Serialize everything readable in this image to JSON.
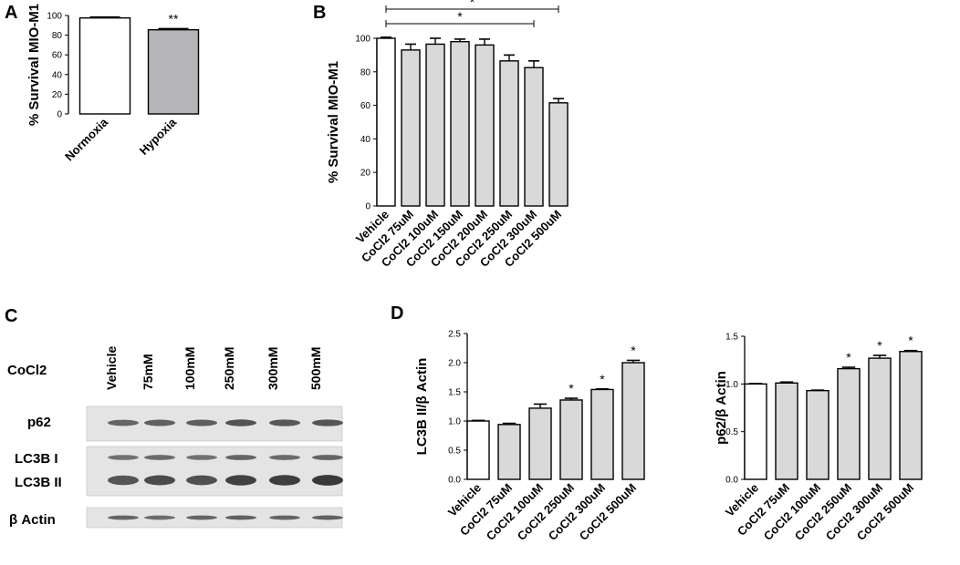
{
  "panels": {
    "a": "A",
    "b": "B",
    "c": "C",
    "d": "D"
  },
  "colors": {
    "white_bar": "#ffffff",
    "gray_bar_a": "#b5b5b8",
    "gray_bar": "#d9d9d9",
    "axis": "#000000",
    "blot_bg": "#e4e4e4",
    "band": "#2a2a2a"
  },
  "chart_data": [
    {
      "id": "A",
      "type": "bar",
      "categories": [
        "Normoxia",
        "Hypoxia"
      ],
      "values": [
        97.5,
        85.5
      ],
      "errors": [
        1.0,
        1.2
      ],
      "fills": [
        "white",
        "gray_a"
      ],
      "sig": [
        "",
        "**"
      ],
      "ylabel": "% Survival MIO-M1",
      "ylim": [
        0,
        100
      ],
      "yticks": [
        0,
        20,
        40,
        60,
        80,
        100
      ]
    },
    {
      "id": "B",
      "type": "bar",
      "categories": [
        "Vehicle",
        "CoCl2 75uM",
        "CoCl2 100uM",
        "CoCl2 150uM",
        "CoCl2 200uM",
        "CoCl2 250uM",
        "CoCl2 300uM",
        "CoCl2 500uM"
      ],
      "values": [
        100,
        93,
        96.5,
        98,
        96,
        86.5,
        82.5,
        61.5
      ],
      "errors": [
        0.6,
        3.5,
        3.5,
        1.5,
        3.5,
        3.5,
        4.0,
        2.5
      ],
      "fills": [
        "white",
        "gray",
        "gray",
        "gray",
        "gray",
        "gray",
        "gray",
        "gray"
      ],
      "sig": [
        "",
        "",
        "",
        "",
        "",
        "",
        "",
        ""
      ],
      "brackets": [
        {
          "from": 0,
          "to": 7,
          "label": "*"
        },
        {
          "from": 0,
          "to": 6,
          "label": "*"
        }
      ],
      "ylabel": "% Survival MIO-M1",
      "ylim": [
        0,
        100
      ],
      "yticks": [
        0,
        20,
        40,
        60,
        80,
        100
      ]
    },
    {
      "id": "D1",
      "type": "bar",
      "categories": [
        "Vehicle",
        "CoCl2 75uM",
        "CoCl2 100uM",
        "CoCl2 250uM",
        "CoCl2 300uM",
        "CoCl2 500uM"
      ],
      "values": [
        1.0,
        0.94,
        1.22,
        1.36,
        1.54,
        2.0
      ],
      "errors": [
        0.01,
        0.02,
        0.07,
        0.03,
        0.01,
        0.04
      ],
      "fills": [
        "white",
        "gray",
        "gray",
        "gray",
        "gray",
        "gray"
      ],
      "sig": [
        "",
        "",
        "",
        "*",
        "*",
        "*"
      ],
      "ylabel": "LC3B II/β Actin",
      "ylim": [
        0,
        2.5
      ],
      "yticks": [
        0.0,
        0.5,
        1.0,
        1.5,
        2.0,
        2.5
      ]
    },
    {
      "id": "D2",
      "type": "bar",
      "categories": [
        "Vehicle",
        "CoCl2 75uM",
        "CoCl2 100uM",
        "CoCl2 250uM",
        "CoCl2 300uM",
        "CoCl2 500uM"
      ],
      "values": [
        1.0,
        1.01,
        0.93,
        1.16,
        1.27,
        1.34
      ],
      "errors": [
        0.005,
        0.01,
        0.005,
        0.015,
        0.03,
        0.01
      ],
      "fills": [
        "white",
        "gray",
        "gray",
        "gray",
        "gray",
        "gray"
      ],
      "sig": [
        "",
        "",
        "",
        "*",
        "*",
        "*"
      ],
      "ylabel": "p62/β Actin",
      "ylim": [
        0,
        1.5
      ],
      "yticks": [
        0.0,
        0.5,
        1.0,
        1.5
      ]
    }
  ],
  "blot": {
    "treatment_label": "CoCl2",
    "lanes": [
      "Vehicle",
      "75mM",
      "100mM",
      "250mM",
      "300mM",
      "500mM"
    ],
    "rows": [
      {
        "label": "p62",
        "band_intensity": [
          0.55,
          0.6,
          0.62,
          0.72,
          0.68,
          0.7
        ]
      },
      {
        "label": "LC3B I",
        "band_intensity": [
          0.45,
          0.5,
          0.45,
          0.55,
          0.5,
          0.55
        ]
      },
      {
        "label": "LC3B II",
        "band_intensity": [
          0.7,
          0.78,
          0.75,
          0.88,
          0.9,
          0.95
        ]
      },
      {
        "label": "β Actin",
        "band_intensity": [
          0.55,
          0.5,
          0.55,
          0.6,
          0.55,
          0.58
        ]
      }
    ]
  }
}
